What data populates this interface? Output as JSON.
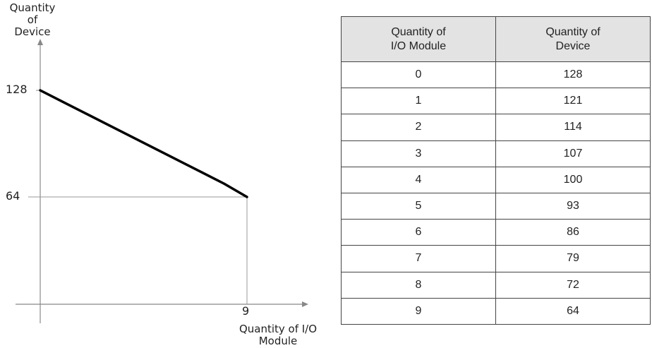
{
  "chart_data": {
    "type": "line",
    "ylabel": "Quantity of\nDevice",
    "xlabel": "Quantity of I/O\nModule",
    "x_ticks": [
      "9"
    ],
    "y_ticks": [
      "128",
      "64"
    ],
    "xlim": [
      0,
      9
    ],
    "ylim": [
      0,
      128
    ],
    "series": [
      {
        "x": [
          0,
          1,
          2,
          3,
          4,
          5,
          6,
          7,
          8,
          9
        ],
        "y": [
          128,
          121,
          114,
          107,
          100,
          93,
          86,
          79,
          72,
          64
        ]
      }
    ],
    "line_color": "#000000",
    "guide_color": "#999999",
    "grid": false
  },
  "table": {
    "headers": [
      "Quantity of\nI/O Module",
      "Quantity of\nDevice"
    ],
    "rows": [
      [
        "0",
        "128"
      ],
      [
        "1",
        "121"
      ],
      [
        "2",
        "114"
      ],
      [
        "3",
        "107"
      ],
      [
        "4",
        "100"
      ],
      [
        "5",
        "93"
      ],
      [
        "6",
        "86"
      ],
      [
        "7",
        "79"
      ],
      [
        "8",
        "72"
      ],
      [
        "9",
        "64"
      ]
    ]
  }
}
